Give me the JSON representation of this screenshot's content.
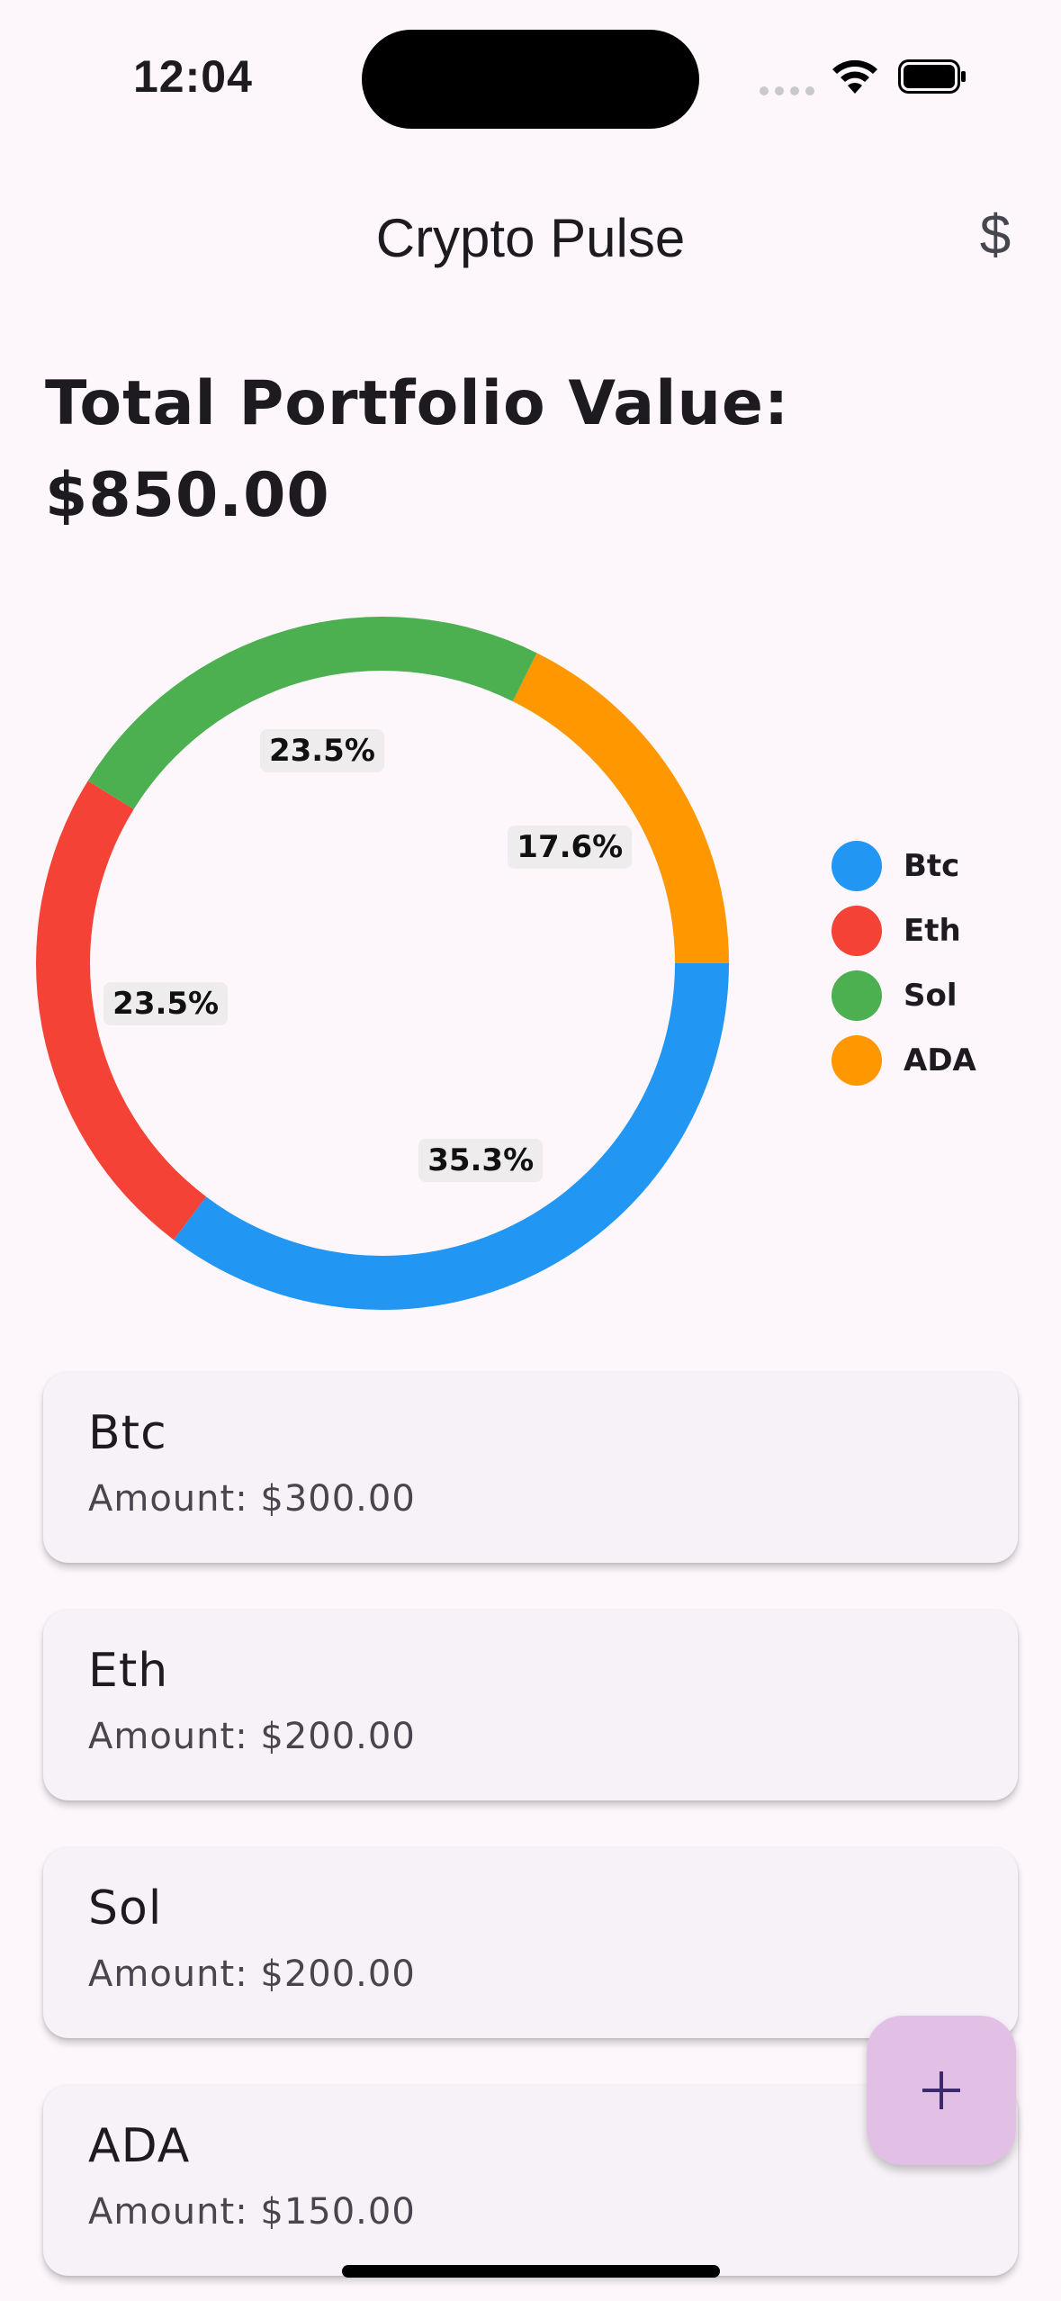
{
  "status_bar": {
    "time": "12:04"
  },
  "app_bar": {
    "title": "Crypto Pulse",
    "currency_icon": "$"
  },
  "portfolio": {
    "title_line1": "Total Portfolio Value:",
    "title_line2": "$850.00"
  },
  "chart_data": {
    "type": "pie",
    "categories": [
      "Btc",
      "Eth",
      "Sol",
      "ADA"
    ],
    "values": [
      300,
      200,
      200,
      150
    ],
    "percent_labels": [
      "35.3%",
      "23.5%",
      "23.5%",
      "17.6%"
    ],
    "colors": [
      "#2196F3",
      "#F44336",
      "#4CAF50",
      "#FF9800"
    ],
    "legend_position": "right"
  },
  "assets": [
    {
      "name": "Btc",
      "amount": "Amount: $300.00"
    },
    {
      "name": "Eth",
      "amount": "Amount: $200.00"
    },
    {
      "name": "Sol",
      "amount": "Amount: $200.00"
    },
    {
      "name": "ADA",
      "amount": "Amount: $150.00"
    }
  ],
  "fab": {
    "icon": "plus-icon"
  }
}
